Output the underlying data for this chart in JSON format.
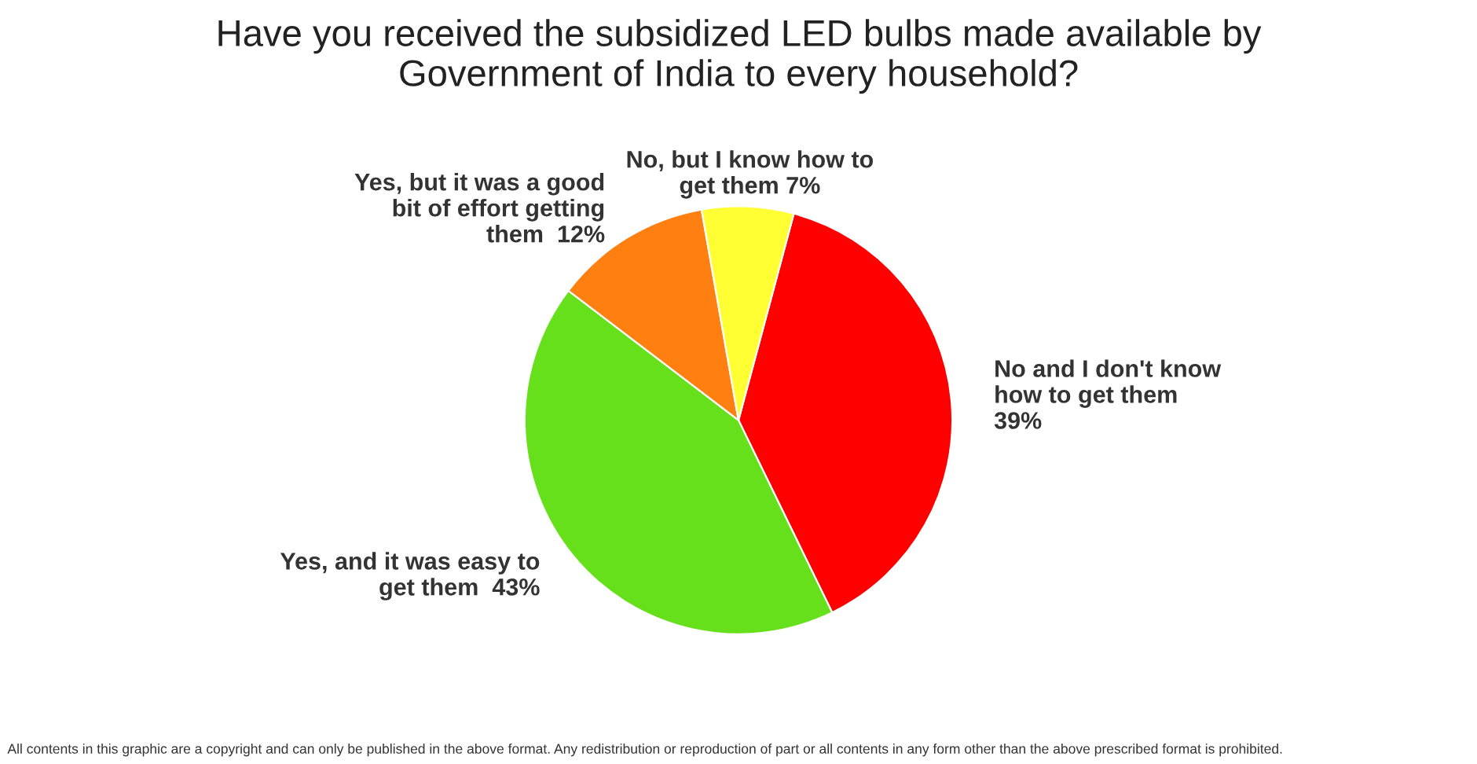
{
  "chart_data": {
    "type": "pie",
    "title": "Have you received the subsidized LED bulbs made available by\nGovernment of India to every household?",
    "categories": [
      "No and I don't know\nhow to get them\n39%",
      "Yes, and it was easy to\nget them  43%",
      "Yes, but it was a good\nbit of effort getting\nthem  12%",
      "No, but I know how to\nget them 7%"
    ],
    "values": [
      39,
      43,
      12,
      7
    ],
    "colors": [
      "#ff0000",
      "#66e01a",
      "#ff7f10",
      "#ffff33"
    ],
    "annotations": [
      "All contents in this graphic are a copyright and can only be published in the above format. Any redistribution or reproduction of part or all contents in any form other than the above prescribed format is prohibited."
    ]
  }
}
